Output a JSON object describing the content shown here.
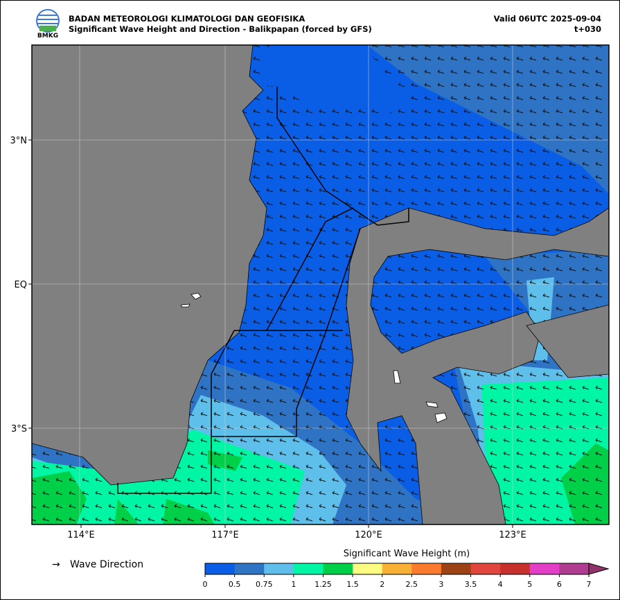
{
  "header": {
    "logo": "BMKG",
    "org": "BADAN METEOROLOGI KLIMATOLOGI DAN GEOFISIKA",
    "title": "Significant Wave Height and Direction - Balikpapan (forced by GFS)",
    "valid": "Valid 06UTC 2025-09-04",
    "step": "t+030"
  },
  "map": {
    "lon_labels": [
      "114°E",
      "117°E",
      "120°E",
      "123°E"
    ],
    "lat_labels": [
      "3°N",
      "EQ",
      "3°S"
    ]
  },
  "legend": {
    "arrow": "→",
    "direction": "Wave Direction"
  },
  "colorbar": {
    "title": "Significant Wave Height (m)",
    "ticks": [
      0,
      0.5,
      0.75,
      1,
      1.25,
      1.5,
      2,
      2.5,
      3,
      3.5,
      4,
      5,
      6,
      7
    ],
    "colors": [
      "#0a5ee6",
      "#2f73c4",
      "#5ec0ea",
      "#00f5a5",
      "#00d048",
      "#fcfc82",
      "#f8b036",
      "#fa7a2e",
      "#9c4214",
      "#e0463c",
      "#c8302e",
      "#e23ec8",
      "#b03c92"
    ],
    "over_color": "#92346a"
  }
}
